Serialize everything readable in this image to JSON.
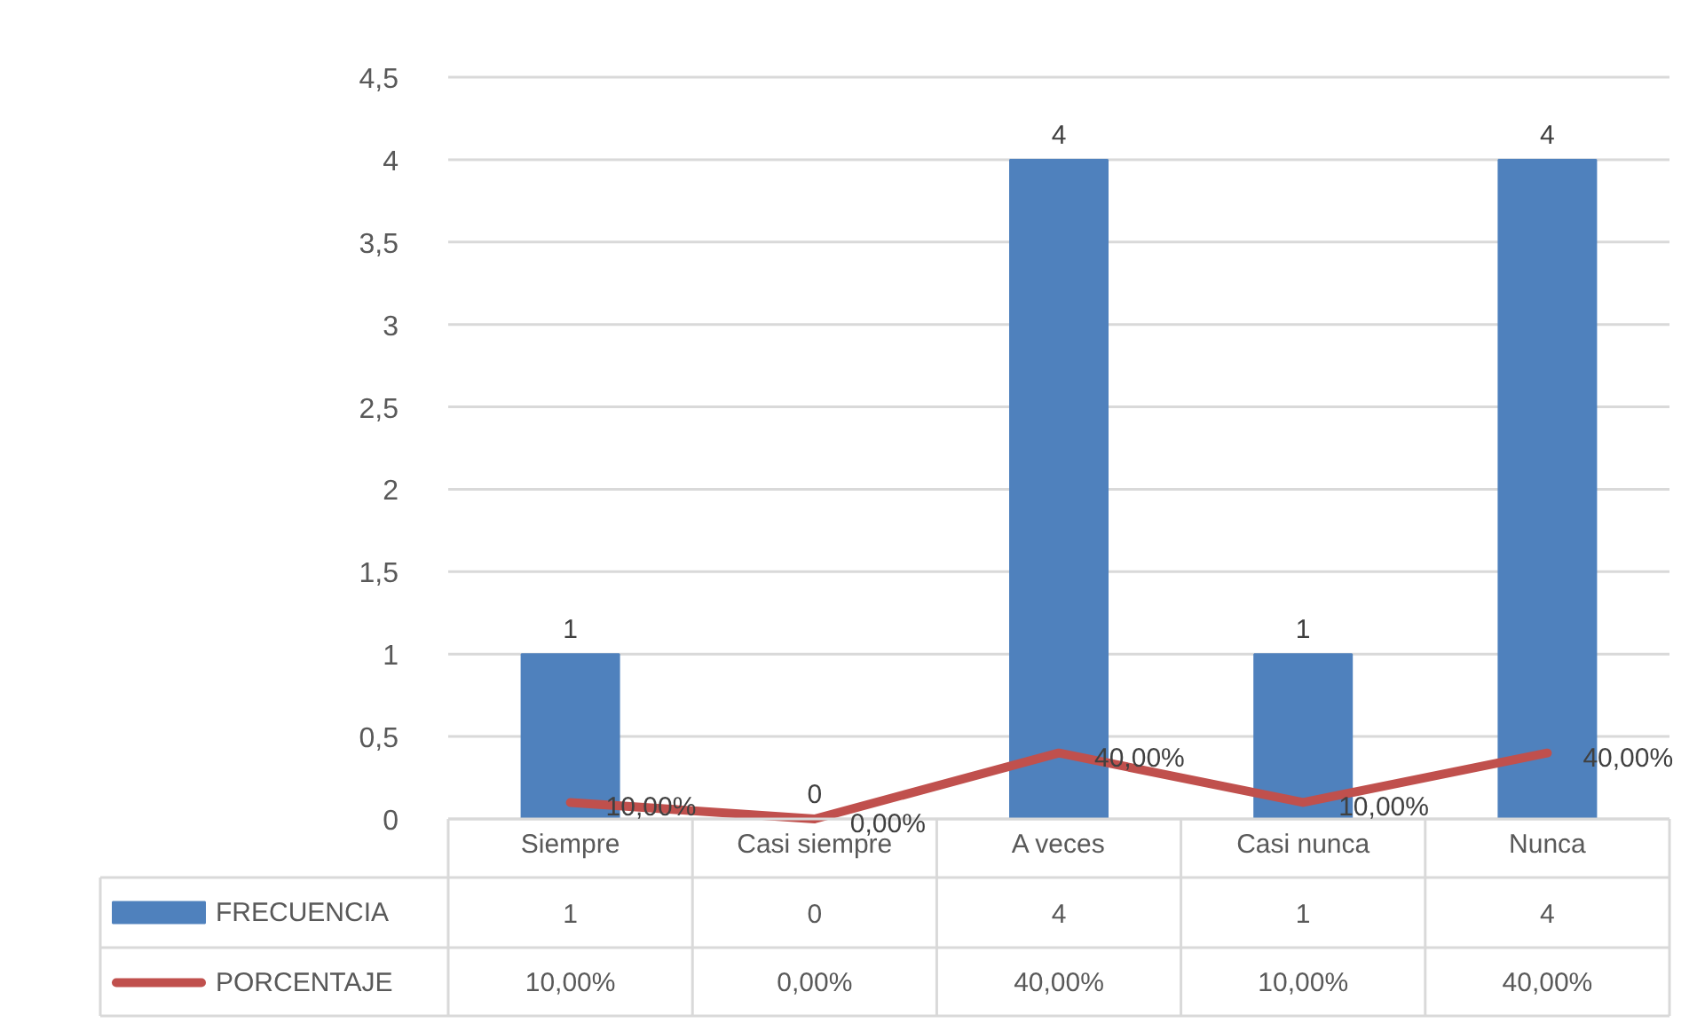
{
  "chart_data": {
    "type": "bar",
    "categories": [
      "Siempre",
      "Casi siempre",
      "A veces",
      "Casi nunca",
      "Nunca"
    ],
    "series": [
      {
        "name": "FRECUENCIA",
        "color": "#4f81bd",
        "values": [
          1,
          0,
          4,
          1,
          4
        ],
        "value_labels": [
          "1",
          "0",
          "4",
          "1",
          "4"
        ]
      },
      {
        "name": "PORCENTAJE",
        "type": "line",
        "color": "#c0504d",
        "values": [
          0.1,
          0,
          0.4,
          0.1,
          0.4
        ],
        "value_labels": [
          "10,00%",
          "0,00%",
          "40,00%",
          "10,00%",
          "40,00%"
        ]
      }
    ],
    "ylim": [
      0,
      4.5
    ],
    "yticks": [
      0,
      {
        "value": 0.5,
        "label": "0,5"
      },
      1,
      {
        "value": 1.5,
        "label": "1,5"
      },
      2,
      {
        "value": 2.5,
        "label": "2,5"
      },
      3,
      {
        "value": 3.5,
        "label": "3,5"
      },
      4,
      {
        "value": 4.5,
        "label": "4,5"
      }
    ],
    "grid": "y",
    "legend": "bottom"
  }
}
